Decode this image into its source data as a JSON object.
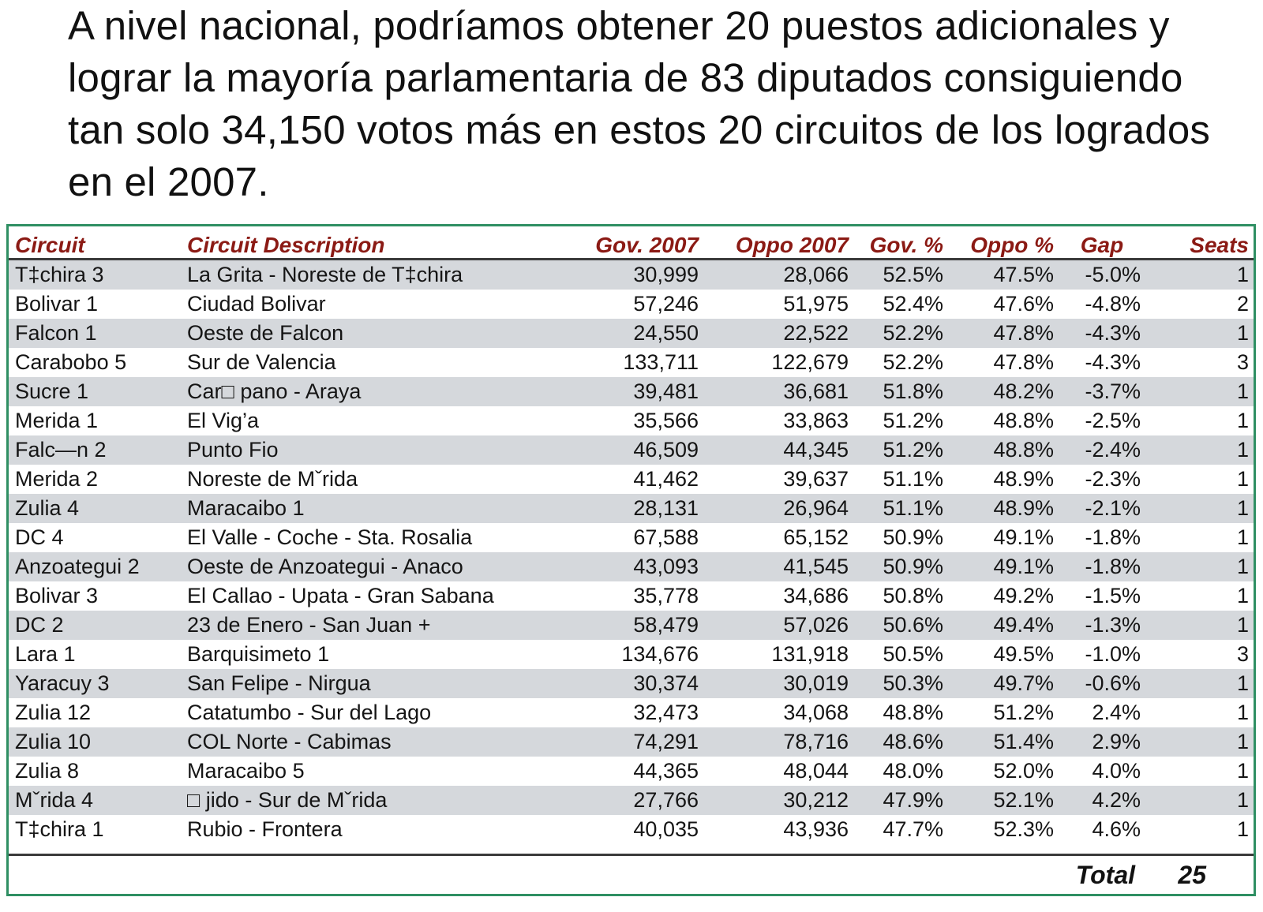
{
  "headline": "A nivel nacional, podríamos obtener 20 puestos adicionales y lograr la mayoría parlamentaria de 83 diputados consiguiendo tan solo 34,150 votos más en estos 20 circuitos de los logrados en el 2007.",
  "table": {
    "headers": {
      "circuit": "Circuit",
      "description": "Circuit Description",
      "gov2007": "Gov. 2007",
      "oppo2007": "Oppo 2007",
      "govpct": "Gov. %",
      "oppopct": "Oppo %",
      "gap": "Gap",
      "seats": "Seats"
    },
    "rows": [
      {
        "circuit": "T‡chira 3",
        "description": "La Grita - Noreste de T‡chira",
        "gov2007": "30,999",
        "oppo2007": "28,066",
        "govpct": "52.5%",
        "oppopct": "47.5%",
        "gap": "-5.0%",
        "seats": "1"
      },
      {
        "circuit": "Bolivar 1",
        "description": "Ciudad Bolivar",
        "gov2007": "57,246",
        "oppo2007": "51,975",
        "govpct": "52.4%",
        "oppopct": "47.6%",
        "gap": "-4.8%",
        "seats": "2"
      },
      {
        "circuit": "Falcon 1",
        "description": "Oeste de Falcon",
        "gov2007": "24,550",
        "oppo2007": "22,522",
        "govpct": "52.2%",
        "oppopct": "47.8%",
        "gap": "-4.3%",
        "seats": "1"
      },
      {
        "circuit": "Carabobo 5",
        "description": "Sur de Valencia",
        "gov2007": "133,711",
        "oppo2007": "122,679",
        "govpct": "52.2%",
        "oppopct": "47.8%",
        "gap": "-4.3%",
        "seats": "3"
      },
      {
        "circuit": "Sucre 1",
        "description": "Car□ pano - Araya",
        "gov2007": "39,481",
        "oppo2007": "36,681",
        "govpct": "51.8%",
        "oppopct": "48.2%",
        "gap": "-3.7%",
        "seats": "1"
      },
      {
        "circuit": "Merida 1",
        "description": "El Vig’a",
        "gov2007": "35,566",
        "oppo2007": "33,863",
        "govpct": "51.2%",
        "oppopct": "48.8%",
        "gap": "-2.5%",
        "seats": "1"
      },
      {
        "circuit": "Falc—n 2",
        "description": "Punto Fio",
        "gov2007": "46,509",
        "oppo2007": "44,345",
        "govpct": "51.2%",
        "oppopct": "48.8%",
        "gap": "-2.4%",
        "seats": "1"
      },
      {
        "circuit": "Merida 2",
        "description": "Noreste de Mˇrida",
        "gov2007": "41,462",
        "oppo2007": "39,637",
        "govpct": "51.1%",
        "oppopct": "48.9%",
        "gap": "-2.3%",
        "seats": "1"
      },
      {
        "circuit": "Zulia 4",
        "description": "Maracaibo 1",
        "gov2007": "28,131",
        "oppo2007": "26,964",
        "govpct": "51.1%",
        "oppopct": "48.9%",
        "gap": "-2.1%",
        "seats": "1"
      },
      {
        "circuit": "DC 4",
        "description": "El Valle - Coche - Sta. Rosalia",
        "gov2007": "67,588",
        "oppo2007": "65,152",
        "govpct": "50.9%",
        "oppopct": "49.1%",
        "gap": "-1.8%",
        "seats": "1"
      },
      {
        "circuit": "Anzoategui 2",
        "description": "Oeste de Anzoategui - Anaco",
        "gov2007": "43,093",
        "oppo2007": "41,545",
        "govpct": "50.9%",
        "oppopct": "49.1%",
        "gap": "-1.8%",
        "seats": "1"
      },
      {
        "circuit": "Bolivar 3",
        "description": "El Callao - Upata - Gran Sabana",
        "gov2007": "35,778",
        "oppo2007": "34,686",
        "govpct": "50.8%",
        "oppopct": "49.2%",
        "gap": "-1.5%",
        "seats": "1"
      },
      {
        "circuit": "DC 2",
        "description": "23 de Enero - San Juan +",
        "gov2007": "58,479",
        "oppo2007": "57,026",
        "govpct": "50.6%",
        "oppopct": "49.4%",
        "gap": "-1.3%",
        "seats": "1"
      },
      {
        "circuit": "Lara 1",
        "description": "Barquisimeto 1",
        "gov2007": "134,676",
        "oppo2007": "131,918",
        "govpct": "50.5%",
        "oppopct": "49.5%",
        "gap": "-1.0%",
        "seats": "3"
      },
      {
        "circuit": "Yaracuy 3",
        "description": "San Felipe - Nirgua",
        "gov2007": "30,374",
        "oppo2007": "30,019",
        "govpct": "50.3%",
        "oppopct": "49.7%",
        "gap": "-0.6%",
        "seats": "1"
      },
      {
        "circuit": "Zulia 12",
        "description": "Catatumbo - Sur del Lago",
        "gov2007": "32,473",
        "oppo2007": "34,068",
        "govpct": "48.8%",
        "oppopct": "51.2%",
        "gap": "2.4%",
        "seats": "1"
      },
      {
        "circuit": "Zulia 10",
        "description": "COL Norte - Cabimas",
        "gov2007": "74,291",
        "oppo2007": "78,716",
        "govpct": "48.6%",
        "oppopct": "51.4%",
        "gap": "2.9%",
        "seats": "1"
      },
      {
        "circuit": "Zulia 8",
        "description": "Maracaibo 5",
        "gov2007": "44,365",
        "oppo2007": "48,044",
        "govpct": "48.0%",
        "oppopct": "52.0%",
        "gap": "4.0%",
        "seats": "1"
      },
      {
        "circuit": "Mˇrida 4",
        "description": "□ jido - Sur de Mˇrida",
        "gov2007": "27,766",
        "oppo2007": "30,212",
        "govpct": "47.9%",
        "oppopct": "52.1%",
        "gap": "4.2%",
        "seats": "1"
      },
      {
        "circuit": "T‡chira 1",
        "description": "Rubio - Frontera",
        "gov2007": "40,035",
        "oppo2007": "43,936",
        "govpct": "47.7%",
        "oppopct": "52.3%",
        "gap": "4.6%",
        "seats": "1"
      }
    ],
    "total_label": "Total",
    "total_value": "25"
  }
}
